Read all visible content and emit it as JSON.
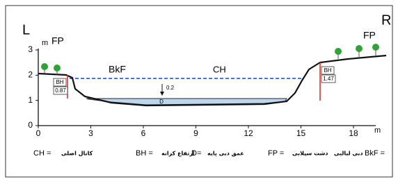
{
  "labels": {
    "left": "L",
    "right": "R",
    "y_unit": "m",
    "x_unit": "m",
    "fp_left": "FP",
    "fp_right": "FP",
    "bankfull": "BkF",
    "channel": "CH",
    "depth_gap": "0.2",
    "depth": "D"
  },
  "bank_heights": [
    {
      "label": "BH",
      "value": "0.87"
    },
    {
      "label": "BH",
      "value": "1.47"
    }
  ],
  "y_axis": {
    "ticks": [
      "0",
      "1",
      "2",
      "3"
    ]
  },
  "x_axis": {
    "ticks": [
      "0",
      "3",
      "6",
      "9",
      "12",
      "15",
      "18"
    ]
  },
  "legend": [
    {
      "term": "CH =",
      "meaning": "کانال اصلی"
    },
    {
      "term": "BH =",
      "meaning": "ارتفاع کرانه"
    },
    {
      "term": "D=",
      "meaning": "عمق دبی پایه"
    },
    {
      "term": "FP =",
      "meaning": "دشت سیلابی"
    },
    {
      "term": "BkF =",
      "meaning": "دبی لبالبی"
    }
  ]
}
